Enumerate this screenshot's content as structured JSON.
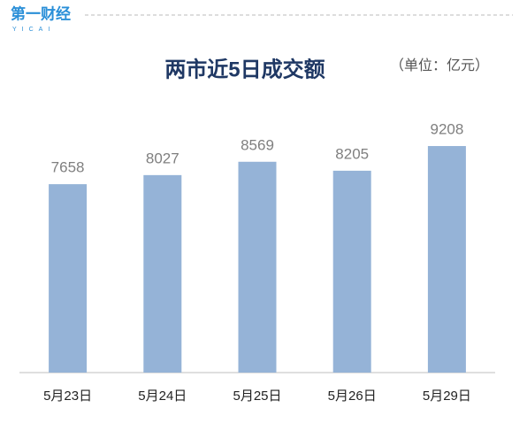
{
  "logo": {
    "name": "第一财经",
    "sub": "YICAI"
  },
  "chart_data": {
    "type": "bar",
    "title": "两市近5日成交额",
    "unit": "（单位：亿元）",
    "categories": [
      "5月23日",
      "5月24日",
      "5月25日",
      "5月26日",
      "5月29日"
    ],
    "values": [
      7658,
      8027,
      8569,
      8205,
      9208
    ],
    "color": "#95b3d7"
  }
}
